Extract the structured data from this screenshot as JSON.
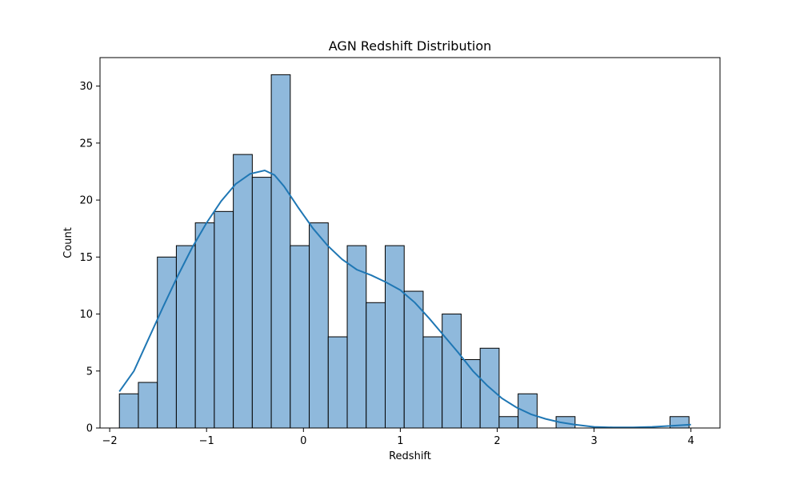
{
  "chart_data": {
    "type": "bar",
    "title": "AGN Redshift Distribution",
    "xlabel": "Redshift",
    "ylabel": "Count",
    "xlim": [
      -2.1,
      4.3
    ],
    "ylim": [
      0,
      32.5
    ],
    "xticks": [
      -2,
      -1,
      0,
      1,
      2,
      3,
      4
    ],
    "xtick_labels": [
      "−2",
      "−1",
      "0",
      "1",
      "2",
      "3",
      "4"
    ],
    "yticks": [
      0,
      5,
      10,
      15,
      20,
      25,
      30
    ],
    "ytick_labels": [
      "0",
      "5",
      "10",
      "15",
      "20",
      "25",
      "30"
    ],
    "grid": false,
    "legend": "none",
    "bins": {
      "start": -1.9,
      "width": 0.196,
      "counts": [
        3,
        4,
        15,
        16,
        18,
        19,
        24,
        22,
        31,
        16,
        18,
        8,
        16,
        11,
        16,
        12,
        8,
        10,
        6,
        7,
        1,
        3,
        0,
        1,
        0,
        0,
        0,
        0,
        0,
        1
      ]
    },
    "kde": {
      "x": [
        -1.9,
        -1.75,
        -1.6,
        -1.45,
        -1.3,
        -1.15,
        -1.0,
        -0.85,
        -0.7,
        -0.55,
        -0.4,
        -0.3,
        -0.2,
        -0.05,
        0.1,
        0.25,
        0.4,
        0.55,
        0.7,
        0.85,
        1.0,
        1.15,
        1.3,
        1.45,
        1.6,
        1.75,
        1.9,
        2.05,
        2.2,
        2.35,
        2.5,
        2.65,
        2.8,
        3.0,
        3.2,
        3.4,
        3.6,
        3.8,
        4.0
      ],
      "y": [
        3.2,
        5.0,
        7.8,
        10.6,
        13.3,
        15.8,
        18.0,
        19.9,
        21.4,
        22.3,
        22.6,
        22.2,
        21.2,
        19.3,
        17.5,
        16.0,
        14.8,
        13.9,
        13.4,
        12.8,
        12.1,
        11.0,
        9.6,
        8.1,
        6.6,
        5.0,
        3.7,
        2.6,
        1.8,
        1.2,
        0.8,
        0.5,
        0.3,
        0.1,
        0.05,
        0.05,
        0.1,
        0.2,
        0.3
      ]
    },
    "colors": {
      "bar_fill": "#8fb9dc",
      "bar_edge": "#000000",
      "kde_line": "#1f77b4"
    }
  }
}
